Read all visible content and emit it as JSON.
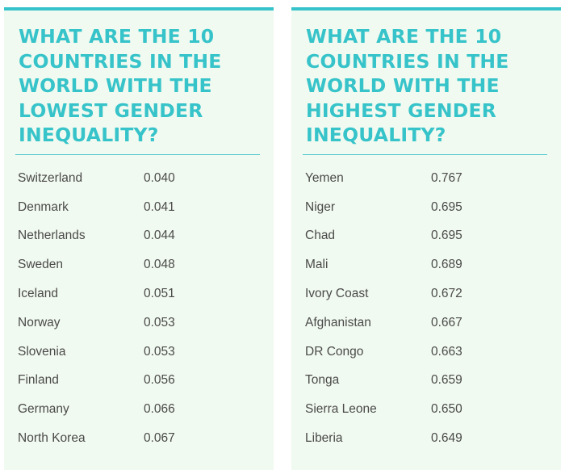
{
  "left_panel": {
    "title_lines": [
      "WHAT ARE THE 10",
      "COUNTRIES IN THE",
      "WORLD WITH THE",
      "LOWEST GENDER",
      "INEQUALITY?"
    ],
    "rows": [
      {
        "country": "Switzerland",
        "value": "0.040"
      },
      {
        "country": "Denmark",
        "value": "0.041"
      },
      {
        "country": "Netherlands",
        "value": "0.044"
      },
      {
        "country": "Sweden",
        "value": "0.048"
      },
      {
        "country": "Iceland",
        "value": "0.051"
      },
      {
        "country": "Norway",
        "value": "0.053"
      },
      {
        "country": "Slovenia",
        "value": "0.053"
      },
      {
        "country": "Finland",
        "value": "0.056"
      },
      {
        "country": "Germany",
        "value": "0.066"
      },
      {
        "country": "North Korea",
        "value": "0.067"
      }
    ]
  },
  "right_panel": {
    "title_lines": [
      "WHAT ARE THE 10",
      "COUNTRIES IN THE",
      "WORLD WITH THE",
      "HIGHEST GENDER",
      "INEQUALITY?"
    ],
    "rows": [
      {
        "country": "Yemen",
        "value": "0.767"
      },
      {
        "country": "Niger",
        "value": "0.695"
      },
      {
        "country": "Chad",
        "value": "0.695"
      },
      {
        "country": "Mali",
        "value": "0.689"
      },
      {
        "country": "Ivory Coast",
        "value": "0.672"
      },
      {
        "country": "Afghanistan",
        "value": "0.667"
      },
      {
        "country": "DR Congo",
        "value": "0.663"
      },
      {
        "country": "Tonga",
        "value": "0.659"
      },
      {
        "country": "Sierra Leone",
        "value": "0.650"
      },
      {
        "country": "Liberia",
        "value": "0.649"
      }
    ]
  },
  "colors": {
    "accent": "#36c3c9",
    "panel_background": "#f1faf0",
    "text": "#4a4a4a"
  }
}
